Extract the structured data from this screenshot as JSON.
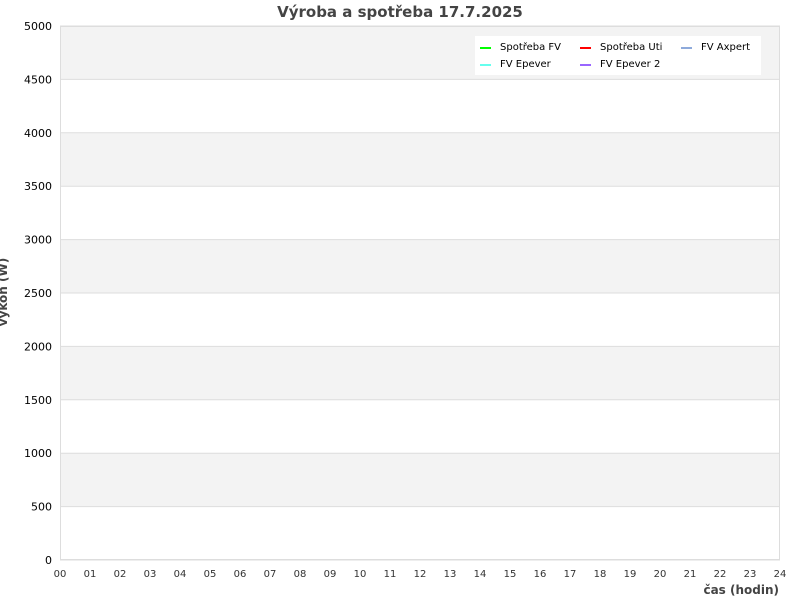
{
  "chart_data": {
    "type": "line",
    "title": "Výroba a spotřeba 17.7.2025",
    "xlabel": "čas (hodin)",
    "ylabel": "výkon (W)",
    "xlim": [
      0,
      24
    ],
    "ylim": [
      0,
      5000
    ],
    "x_ticks": [
      "00",
      "01",
      "02",
      "03",
      "04",
      "05",
      "06",
      "07",
      "08",
      "09",
      "10",
      "11",
      "12",
      "13",
      "14",
      "15",
      "16",
      "17",
      "18",
      "19",
      "20",
      "21",
      "22",
      "23",
      "24"
    ],
    "y_ticks": [
      "0",
      "500",
      "1000",
      "1500",
      "2000",
      "2500",
      "3000",
      "3500",
      "4000",
      "4500",
      "5000"
    ],
    "grid": true,
    "legend_position": "top-right",
    "series": [
      {
        "name": "Spotřeba FV",
        "color": "#00ff00",
        "values": []
      },
      {
        "name": "Spotřeba Uti",
        "color": "#ff0000",
        "values": []
      },
      {
        "name": "FV Axpert",
        "color": "#8eaadb",
        "values": []
      },
      {
        "name": "FV Epever",
        "color": "#66ffee",
        "values": []
      },
      {
        "name": "FV Epever 2",
        "color": "#9966ff",
        "values": []
      }
    ]
  }
}
